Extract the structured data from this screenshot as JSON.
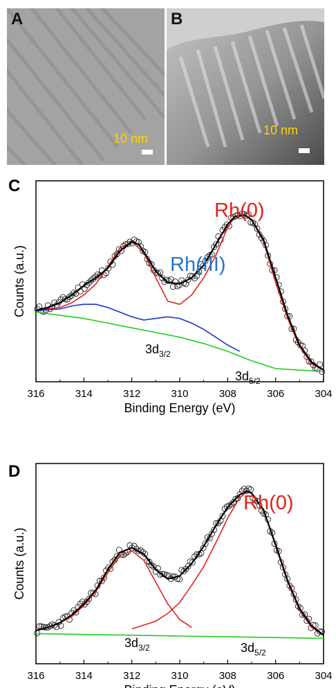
{
  "panels": {
    "A": {
      "letter": "A",
      "scale_label": "10 nm"
    },
    "B": {
      "letter": "B",
      "scale_label": "10 nm"
    }
  },
  "chart_data": [
    {
      "type": "line",
      "panel": "C",
      "xlabel": "Binding Energy (eV)",
      "ylabel": "Counts (a.u.)",
      "xlim": [
        316,
        304
      ],
      "ylim": [
        0,
        1
      ],
      "x_reversed": true,
      "x_ticks": [
        316,
        314,
        312,
        310,
        308,
        306,
        304
      ],
      "annotations": [
        {
          "text": "Rh(0)",
          "color": "#e0221e"
        },
        {
          "text": "Rh(III)",
          "color": "#2277cc"
        },
        {
          "text": "3d",
          "sub": "3/2",
          "x": 312.6,
          "y": 0.21
        },
        {
          "text": "3d",
          "sub": "5/2",
          "x": 306.9,
          "y": 0.06
        }
      ],
      "series": [
        {
          "role": "baseline",
          "color": "#22cc22",
          "x": [
            316,
            315,
            314,
            313,
            312,
            311,
            310,
            309,
            308,
            307,
            306,
            305,
            304
          ],
          "y": [
            0.38,
            0.36,
            0.34,
            0.31,
            0.28,
            0.25,
            0.22,
            0.18,
            0.13,
            0.07,
            0.02,
            0.01,
            0.0
          ]
        },
        {
          "role": "component",
          "color": "#e0221e",
          "x": [
            316,
            315.5,
            315,
            314.5,
            314,
            313.5,
            313,
            312.5,
            312,
            311.5,
            311,
            310.5,
            310,
            309.5,
            309,
            308.5,
            308,
            307.7,
            307.3,
            307,
            306.5,
            306,
            305.5,
            305,
            304.5,
            304
          ],
          "y": [
            0.39,
            0.4,
            0.41,
            0.44,
            0.49,
            0.56,
            0.67,
            0.79,
            0.83,
            0.76,
            0.6,
            0.45,
            0.43,
            0.49,
            0.6,
            0.74,
            0.92,
            0.99,
            1.0,
            0.97,
            0.83,
            0.57,
            0.34,
            0.16,
            0.05,
            0.01
          ]
        },
        {
          "role": "component",
          "color": "#2233cc",
          "x": [
            316,
            315,
            314.5,
            314,
            313.5,
            313,
            312.5,
            312,
            311.5,
            311,
            310.5,
            310,
            309.5,
            309,
            308.5,
            308,
            307.5
          ],
          "y": [
            0.39,
            0.4,
            0.42,
            0.43,
            0.43,
            0.41,
            0.38,
            0.35,
            0.33,
            0.34,
            0.35,
            0.34,
            0.31,
            0.27,
            0.22,
            0.17,
            0.13
          ]
        },
        {
          "role": "envelope",
          "color": "#000000",
          "x": [
            316,
            315.5,
            315,
            314.5,
            314,
            313.5,
            313,
            312.5,
            312,
            311.7,
            311.4,
            311,
            310.5,
            310,
            309.5,
            309,
            308.5,
            308,
            307.7,
            307.3,
            307,
            306.5,
            306,
            305.5,
            305,
            304.5,
            304
          ],
          "y": [
            0.39,
            0.41,
            0.44,
            0.49,
            0.55,
            0.6,
            0.66,
            0.77,
            0.83,
            0.81,
            0.74,
            0.64,
            0.57,
            0.56,
            0.6,
            0.68,
            0.81,
            0.94,
            0.99,
            1.0,
            0.97,
            0.84,
            0.6,
            0.36,
            0.17,
            0.06,
            0.01
          ]
        }
      ]
    },
    {
      "type": "line",
      "panel": "D",
      "xlabel": "Binding Energy (eV)",
      "ylabel": "Counts (a.u.)",
      "xlim": [
        316,
        304
      ],
      "ylim": [
        0,
        1
      ],
      "x_reversed": true,
      "x_ticks": [
        316,
        314,
        312,
        310,
        308,
        306,
        304
      ],
      "annotations": [
        {
          "text": "Rh(0)",
          "color": "#e0221e"
        },
        {
          "text": "3d",
          "sub": "3/2",
          "x": 311.9,
          "y": 0.03
        },
        {
          "text": "3d",
          "sub": "5/2",
          "x": 306.9,
          "y": 0.03
        }
      ],
      "series": [
        {
          "role": "baseline",
          "color": "#22cc22",
          "x": [
            316,
            314,
            312,
            310,
            308,
            306,
            304
          ],
          "y": [
            0.09,
            0.085,
            0.08,
            0.075,
            0.07,
            0.065,
            0.06
          ]
        },
        {
          "role": "component",
          "color": "#e0221e",
          "x": [
            316,
            315.5,
            315,
            314.5,
            314,
            313.5,
            313,
            312.5,
            312,
            311.5,
            311,
            310.5,
            310,
            309.5
          ],
          "y": [
            0.11,
            0.13,
            0.16,
            0.2,
            0.27,
            0.36,
            0.48,
            0.59,
            0.62,
            0.56,
            0.42,
            0.28,
            0.18,
            0.13
          ]
        },
        {
          "role": "component",
          "color": "#e0221e",
          "x": [
            312,
            311,
            310.5,
            310,
            309.5,
            309,
            308.5,
            308,
            307.5,
            307.2,
            307,
            306.5,
            306,
            305.5,
            305,
            304.5,
            304
          ],
          "y": [
            0.12,
            0.17,
            0.22,
            0.29,
            0.4,
            0.52,
            0.67,
            0.83,
            0.96,
            1.0,
            0.99,
            0.88,
            0.65,
            0.42,
            0.24,
            0.13,
            0.08
          ]
        },
        {
          "role": "envelope",
          "color": "#000000",
          "x": [
            316,
            315.5,
            315,
            314.5,
            314,
            313.5,
            313,
            312.5,
            312,
            311.5,
            311,
            310.5,
            310,
            309.5,
            309,
            308.5,
            308,
            307.5,
            307.2,
            307,
            306.5,
            306,
            305.5,
            305,
            304.5,
            304
          ],
          "y": [
            0.11,
            0.13,
            0.16,
            0.21,
            0.28,
            0.37,
            0.5,
            0.61,
            0.64,
            0.6,
            0.5,
            0.44,
            0.46,
            0.54,
            0.65,
            0.78,
            0.9,
            0.98,
            1.0,
            0.99,
            0.88,
            0.66,
            0.43,
            0.25,
            0.14,
            0.08
          ]
        }
      ]
    }
  ]
}
